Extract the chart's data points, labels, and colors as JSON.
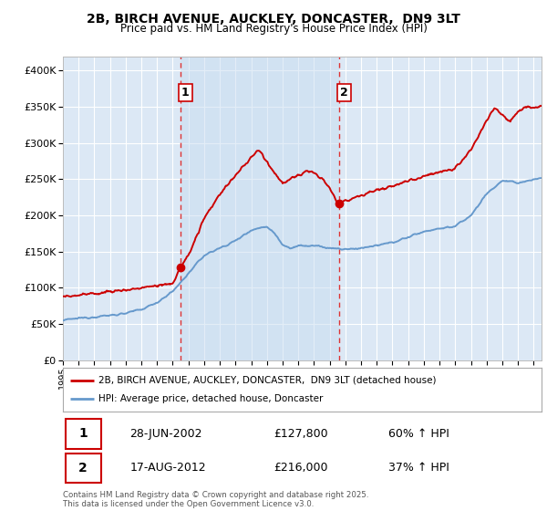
{
  "title": "2B, BIRCH AVENUE, AUCKLEY, DONCASTER,  DN9 3LT",
  "subtitle": "Price paid vs. HM Land Registry's House Price Index (HPI)",
  "xlim_start": 1995.0,
  "xlim_end": 2025.5,
  "ylim_min": 0,
  "ylim_max": 420000,
  "yticks": [
    0,
    50000,
    100000,
    150000,
    200000,
    250000,
    300000,
    350000,
    400000
  ],
  "ytick_labels": [
    "£0",
    "£50K",
    "£100K",
    "£150K",
    "£200K",
    "£250K",
    "£300K",
    "£350K",
    "£400K"
  ],
  "plot_bg_color": "#dce8f5",
  "grid_color": "#ffffff",
  "sale1_x": 2002.49,
  "sale1_y": 127800,
  "sale2_x": 2012.63,
  "sale2_y": 216000,
  "legend_label_red": "2B, BIRCH AVENUE, AUCKLEY, DONCASTER,  DN9 3LT (detached house)",
  "legend_label_blue": "HPI: Average price, detached house, Doncaster",
  "sale1_date": "28-JUN-2002",
  "sale1_price": "£127,800",
  "sale1_note": "60% ↑ HPI",
  "sale2_date": "17-AUG-2012",
  "sale2_price": "£216,000",
  "sale2_note": "37% ↑ HPI",
  "footer": "Contains HM Land Registry data © Crown copyright and database right 2025.\nThis data is licensed under the Open Government Licence v3.0.",
  "red_color": "#cc0000",
  "blue_color": "#6699cc",
  "dashed_color": "#dd3333",
  "shade_color": "#c8ddf0"
}
